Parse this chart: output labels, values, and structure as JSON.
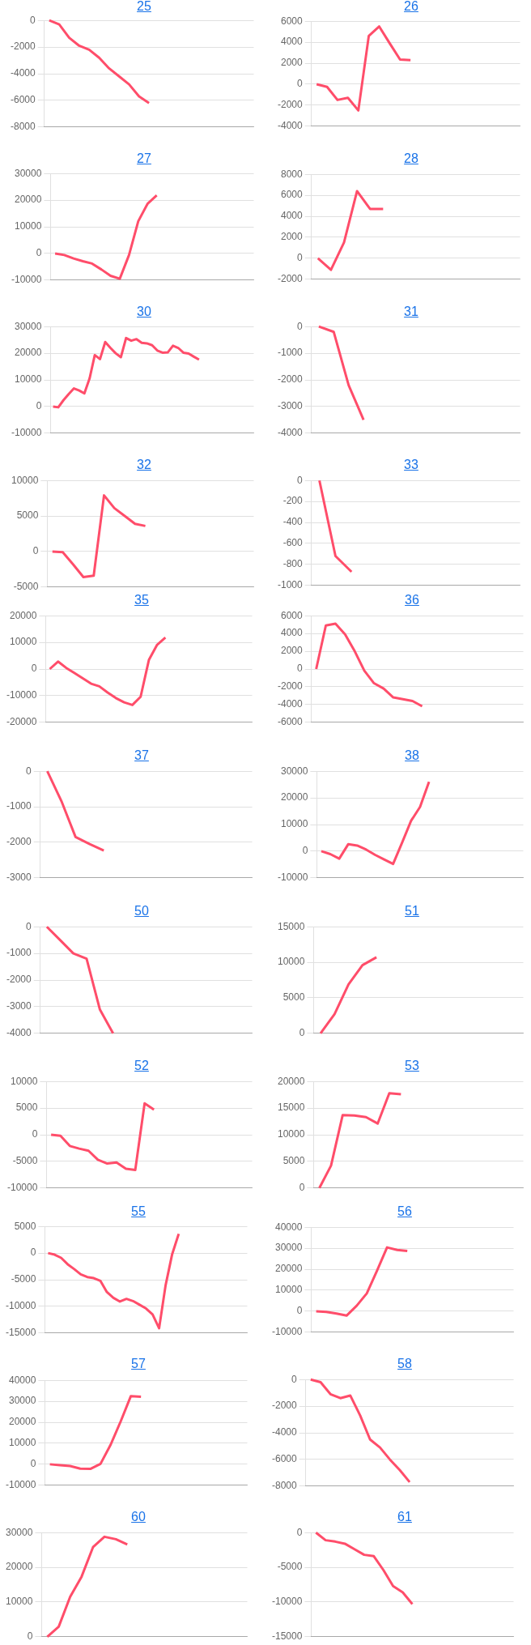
{
  "chart_data": [
    {
      "type": "line",
      "title": "25",
      "categories": [
        null,
        null,
        null,
        null,
        null,
        null,
        null,
        null,
        null,
        null,
        null,
        null,
        null,
        null,
        null,
        null,
        null,
        null,
        null,
        null,
        null
      ],
      "values": [
        0,
        -300,
        -1300,
        -1900,
        -2200,
        -2800,
        -3600,
        -4200,
        -4800,
        -5700,
        -6200,
        null,
        null,
        null,
        null,
        null,
        null,
        null,
        null,
        null,
        null
      ],
      "color": "#ff4d6a",
      "ylim": [
        -8000,
        0
      ],
      "yticks": [
        0,
        -2000,
        -4000,
        -6000,
        -8000
      ],
      "grid": "y"
    },
    {
      "type": "line",
      "title": "26",
      "categories": [
        null,
        null,
        null,
        null,
        null,
        null,
        null,
        null,
        null,
        null,
        null,
        null,
        null,
        null,
        null,
        null,
        null,
        null,
        null,
        null
      ],
      "values": [
        0,
        -250,
        -1500,
        -1300,
        -2500,
        4600,
        5500,
        3900,
        2350,
        2300,
        null,
        null,
        null,
        null,
        null,
        null,
        null,
        null,
        null,
        null
      ],
      "color": "#ff4d6a",
      "ylim": [
        -4000,
        6000
      ],
      "yticks": [
        6000,
        4000,
        2000,
        0,
        -2000,
        -4000
      ],
      "grid": "y"
    },
    {
      "type": "line",
      "title": "27",
      "categories": [
        null,
        null,
        null,
        null,
        null,
        null,
        null,
        null,
        null,
        null,
        null,
        null,
        null,
        null,
        null,
        null,
        null,
        null,
        null,
        null,
        null,
        null
      ],
      "values": [
        0,
        -600,
        -1900,
        -2900,
        -3800,
        -6000,
        -8400,
        -9500,
        -600,
        12100,
        18600,
        21800,
        null,
        null,
        null,
        null,
        null,
        null,
        null,
        null,
        null,
        null
      ],
      "color": "#ff4d6a",
      "ylim": [
        -10000,
        30000
      ],
      "yticks": [
        30000,
        20000,
        10000,
        0,
        -10000
      ],
      "grid": "y"
    },
    {
      "type": "line",
      "title": "28",
      "categories": [
        null,
        null,
        null,
        null,
        null,
        null,
        null,
        null,
        null,
        null,
        null,
        null,
        null,
        null,
        null,
        null
      ],
      "values": [
        0,
        -1100,
        1500,
        6400,
        4700,
        4700,
        null,
        null,
        null,
        null,
        null,
        null,
        null,
        null,
        null,
        null
      ],
      "color": "#ff4d6a",
      "ylim": [
        -2000,
        8000
      ],
      "yticks": [
        8000,
        6000,
        4000,
        2000,
        0,
        -2000
      ],
      "grid": "y"
    },
    {
      "type": "line",
      "title": "30",
      "categories": [
        null,
        null,
        null,
        null,
        null,
        null,
        null,
        null,
        null,
        null,
        null,
        null,
        null,
        null,
        null,
        null,
        null,
        null,
        null,
        null,
        null,
        null,
        null,
        null,
        null,
        null,
        null,
        null,
        null,
        null,
        null,
        null,
        null,
        null,
        null,
        null,
        null,
        null,
        null
      ],
      "values": [
        0,
        -300,
        2400,
        4700,
        6800,
        6000,
        4900,
        10500,
        19300,
        17800,
        24200,
        22000,
        20000,
        18500,
        25700,
        24700,
        25300,
        23900,
        23700,
        23000,
        21000,
        20200,
        20300,
        22800,
        22000,
        20200,
        19900,
        18700,
        17600,
        null,
        null,
        null,
        null,
        null,
        null,
        null,
        null,
        null,
        null
      ],
      "color": "#ff4d6a",
      "ylim": [
        -10000,
        30000
      ],
      "yticks": [
        30000,
        20000,
        10000,
        0,
        -10000
      ],
      "grid": "y"
    },
    {
      "type": "line",
      "title": "31",
      "categories": [
        null,
        null,
        null,
        null,
        null,
        null,
        null,
        null,
        null,
        null,
        null,
        null,
        null,
        null
      ],
      "values": [
        0,
        -200,
        -2200,
        -3500,
        null,
        null,
        null,
        null,
        null,
        null,
        null,
        null,
        null,
        null
      ],
      "color": "#ff4d6a",
      "ylim": [
        -4000,
        0
      ],
      "yticks": [
        0,
        -1000,
        -2000,
        -3000,
        -4000
      ],
      "grid": "y"
    },
    {
      "type": "line",
      "title": "32",
      "categories": [
        null,
        null,
        null,
        null,
        null,
        null,
        null,
        null,
        null,
        null,
        null,
        null,
        null,
        null,
        null,
        null,
        null,
        null,
        null,
        null
      ],
      "values": [
        0,
        -100,
        -1800,
        -3600,
        -3400,
        7900,
        6100,
        5000,
        3900,
        3600,
        null,
        null,
        null,
        null,
        null,
        null,
        null,
        null,
        null,
        null
      ],
      "color": "#ff4d6a",
      "ylim": [
        -5000,
        10000
      ],
      "yticks": [
        10000,
        5000,
        0,
        -5000
      ],
      "grid": "y"
    },
    {
      "type": "line",
      "title": "33",
      "categories": [
        null,
        null,
        null,
        null,
        null,
        null,
        null,
        null,
        null,
        null,
        null,
        null,
        null
      ],
      "values": [
        0,
        -720,
        -870,
        null,
        null,
        null,
        null,
        null,
        null,
        null,
        null,
        null,
        null
      ],
      "color": "#ff4d6a",
      "ylim": [
        -1000,
        0
      ],
      "yticks": [
        0,
        -200,
        -400,
        -600,
        -800,
        -1000
      ],
      "grid": "y"
    },
    {
      "type": "line",
      "title": "35",
      "categories": [
        null,
        null,
        null,
        null,
        null,
        null,
        null,
        null,
        null,
        null,
        null,
        null,
        null,
        null,
        null,
        null,
        null,
        null,
        null,
        null,
        null,
        null,
        null,
        null,
        null
      ],
      "values": [
        0,
        2800,
        400,
        -1500,
        -3500,
        -5500,
        -6500,
        -8800,
        -10900,
        -12500,
        -13500,
        -10400,
        3400,
        9100,
        11800,
        null,
        null,
        null,
        null,
        null,
        null,
        null,
        null,
        null,
        null
      ],
      "color": "#ff4d6a",
      "ylim": [
        -20000,
        20000
      ],
      "yticks": [
        20000,
        10000,
        0,
        -10000,
        -20000
      ],
      "grid": "y"
    },
    {
      "type": "line",
      "title": "36",
      "categories": [
        null,
        null,
        null,
        null,
        null,
        null,
        null,
        null,
        null,
        null,
        null,
        null,
        null,
        null,
        null,
        null,
        null,
        null,
        null,
        null,
        null,
        null
      ],
      "values": [
        0,
        4900,
        5100,
        3900,
        2000,
        -200,
        -1600,
        -2200,
        -3200,
        -3400,
        -3600,
        -4200,
        null,
        null,
        null,
        null,
        null,
        null,
        null,
        null,
        null,
        null
      ],
      "color": "#ff4d6a",
      "ylim": [
        -6000,
        6000
      ],
      "yticks": [
        6000,
        4000,
        2000,
        0,
        -2000,
        -4000,
        -6000
      ],
      "grid": "y"
    },
    {
      "type": "line",
      "title": "37",
      "categories": [
        null,
        null,
        null,
        null,
        null,
        null,
        null,
        null,
        null,
        null,
        null,
        null,
        null,
        null,
        null
      ],
      "values": [
        0,
        -840,
        -1850,
        -2050,
        -2230,
        null,
        null,
        null,
        null,
        null,
        null,
        null,
        null,
        null,
        null
      ],
      "color": "#ff4d6a",
      "ylim": [
        -3000,
        0
      ],
      "yticks": [
        0,
        -1000,
        -2000,
        -3000
      ],
      "grid": "y"
    },
    {
      "type": "line",
      "title": "38",
      "categories": [
        null,
        null,
        null,
        null,
        null,
        null,
        null,
        null,
        null,
        null,
        null,
        null,
        null,
        null,
        null,
        null,
        null,
        null,
        null,
        null,
        null,
        null,
        null
      ],
      "values": [
        0,
        -1100,
        -2800,
        2600,
        2100,
        600,
        -1400,
        -3100,
        -4800,
        3200,
        11400,
        16600,
        26000,
        null,
        null,
        null,
        null,
        null,
        null,
        null,
        null,
        null,
        null
      ],
      "color": "#ff4d6a",
      "ylim": [
        -10000,
        30000
      ],
      "yticks": [
        30000,
        20000,
        10000,
        0,
        -10000
      ],
      "grid": "y"
    },
    {
      "type": "line",
      "title": "50",
      "categories": [
        null,
        null,
        null,
        null,
        null,
        null,
        null,
        null,
        null,
        null,
        null,
        null,
        null,
        null,
        null,
        null
      ],
      "values": [
        0,
        -500,
        -1000,
        -1200,
        -3100,
        -4000,
        null,
        null,
        null,
        null,
        null,
        null,
        null,
        null,
        null,
        null
      ],
      "color": "#ff4d6a",
      "ylim": [
        -4000,
        0
      ],
      "yticks": [
        0,
        -1000,
        -2000,
        -3000,
        -4000
      ],
      "grid": "y"
    },
    {
      "type": "line",
      "title": "51",
      "categories": [
        null,
        null,
        null,
        null,
        null,
        null,
        null,
        null,
        null,
        null,
        null,
        null,
        null,
        null,
        null
      ],
      "values": [
        0,
        2700,
        6900,
        9600,
        10700,
        null,
        null,
        null,
        null,
        null,
        null,
        null,
        null,
        null,
        null
      ],
      "color": "#ff4d6a",
      "ylim": [
        0,
        15000
      ],
      "yticks": [
        15000,
        10000,
        5000,
        0
      ],
      "grid": "y"
    },
    {
      "type": "line",
      "title": "52",
      "categories": [
        null,
        null,
        null,
        null,
        null,
        null,
        null,
        null,
        null,
        null,
        null,
        null,
        null,
        null,
        null,
        null,
        null,
        null,
        null,
        null,
        null,
        null
      ],
      "values": [
        0,
        -200,
        -2100,
        -2600,
        -3000,
        -4700,
        -5400,
        -5200,
        -6400,
        -6600,
        5900,
        4700,
        null,
        null,
        null,
        null,
        null,
        null,
        null,
        null,
        null,
        null
      ],
      "color": "#ff4d6a",
      "ylim": [
        -10000,
        10000
      ],
      "yticks": [
        10000,
        5000,
        0,
        -5000,
        -10000
      ],
      "grid": "y"
    },
    {
      "type": "line",
      "title": "53",
      "categories": [
        null,
        null,
        null,
        null,
        null,
        null,
        null,
        null,
        null,
        null,
        null,
        null,
        null,
        null,
        null,
        null,
        null,
        null
      ],
      "values": [
        0,
        4200,
        13700,
        13600,
        13300,
        12100,
        17800,
        17600,
        null,
        null,
        null,
        null,
        null,
        null,
        null,
        null,
        null,
        null
      ],
      "color": "#ff4d6a",
      "ylim": [
        0,
        20000
      ],
      "yticks": [
        20000,
        15000,
        10000,
        5000,
        0
      ],
      "grid": "y"
    },
    {
      "type": "line",
      "title": "55",
      "categories": [
        null,
        null,
        null,
        null,
        null,
        null,
        null,
        null,
        null,
        null,
        null,
        null,
        null,
        null,
        null,
        null,
        null,
        null,
        null,
        null,
        null,
        null,
        null,
        null,
        null,
        null,
        null,
        null,
        null,
        null,
        null
      ],
      "values": [
        0,
        -300,
        -900,
        -2100,
        -3000,
        -4000,
        -4500,
        -4700,
        -5200,
        -7300,
        -8400,
        -9100,
        -8600,
        -9000,
        -9700,
        -10400,
        -11500,
        -14100,
        -6000,
        -200,
        3600,
        null,
        null,
        null,
        null,
        null,
        null,
        null,
        null,
        null,
        null
      ],
      "color": "#ff4d6a",
      "ylim": [
        -15000,
        5000
      ],
      "yticks": [
        5000,
        0,
        -5000,
        -10000,
        -15000
      ],
      "grid": "y"
    },
    {
      "type": "line",
      "title": "56",
      "categories": [
        null,
        null,
        null,
        null,
        null,
        null,
        null,
        null,
        null,
        null,
        null,
        null,
        null,
        null,
        null,
        null,
        null,
        null,
        null,
        null
      ],
      "values": [
        0,
        -300,
        -1100,
        -2100,
        2600,
        8500,
        19200,
        30400,
        29200,
        28700,
        null,
        null,
        null,
        null,
        null,
        null,
        null,
        null,
        null,
        null
      ],
      "color": "#ff4d6a",
      "ylim": [
        -10000,
        40000
      ],
      "yticks": [
        40000,
        30000,
        20000,
        10000,
        0,
        -10000
      ],
      "grid": "y"
    },
    {
      "type": "line",
      "title": "57",
      "categories": [
        null,
        null,
        null,
        null,
        null,
        null,
        null,
        null,
        null,
        null,
        null,
        null,
        null,
        null,
        null,
        null,
        null,
        null,
        null,
        null
      ],
      "values": [
        0,
        -400,
        -800,
        -2100,
        -2200,
        200,
        9300,
        20500,
        32500,
        32200,
        null,
        null,
        null,
        null,
        null,
        null,
        null,
        null,
        null,
        null
      ],
      "color": "#ff4d6a",
      "ylim": [
        -10000,
        40000
      ],
      "yticks": [
        40000,
        30000,
        20000,
        10000,
        0,
        -10000
      ],
      "grid": "y"
    },
    {
      "type": "line",
      "title": "58",
      "categories": [
        null,
        null,
        null,
        null,
        null,
        null,
        null,
        null,
        null,
        null,
        null,
        null,
        null,
        null,
        null,
        null,
        null,
        null,
        null,
        null,
        null
      ],
      "values": [
        0,
        -200,
        -1100,
        -1400,
        -1200,
        -2700,
        -4500,
        -5100,
        -6000,
        -6800,
        -7700,
        null,
        null,
        null,
        null,
        null,
        null,
        null,
        null,
        null,
        null
      ],
      "color": "#ff4d6a",
      "ylim": [
        -8000,
        0
      ],
      "yticks": [
        0,
        -2000,
        -4000,
        -6000,
        -8000
      ],
      "grid": "y"
    },
    {
      "type": "line",
      "title": "60",
      "categories": [
        null,
        null,
        null,
        null,
        null,
        null,
        null,
        null,
        null,
        null,
        null,
        null,
        null,
        null,
        null,
        null,
        null,
        null
      ],
      "values": [
        0,
        2900,
        11500,
        17300,
        25800,
        28800,
        28100,
        26600,
        null,
        null,
        null,
        null,
        null,
        null,
        null,
        null,
        null,
        null
      ],
      "color": "#ff4d6a",
      "ylim": [
        0,
        30000
      ],
      "yticks": [
        30000,
        20000,
        10000,
        0
      ],
      "grid": "y"
    },
    {
      "type": "line",
      "title": "61",
      "categories": [
        null,
        null,
        null,
        null,
        null,
        null,
        null,
        null,
        null,
        null,
        null,
        null,
        null,
        null,
        null,
        null,
        null,
        null,
        null,
        null,
        null
      ],
      "values": [
        0,
        -1100,
        -1300,
        -1600,
        -2400,
        -3200,
        -3400,
        -5400,
        -7700,
        -8600,
        -10300,
        null,
        null,
        null,
        null,
        null,
        null,
        null,
        null,
        null,
        null
      ],
      "color": "#ff4d6a",
      "ylim": [
        -15000,
        0
      ],
      "yticks": [
        0,
        -5000,
        -10000,
        -15000
      ],
      "grid": "y"
    }
  ]
}
